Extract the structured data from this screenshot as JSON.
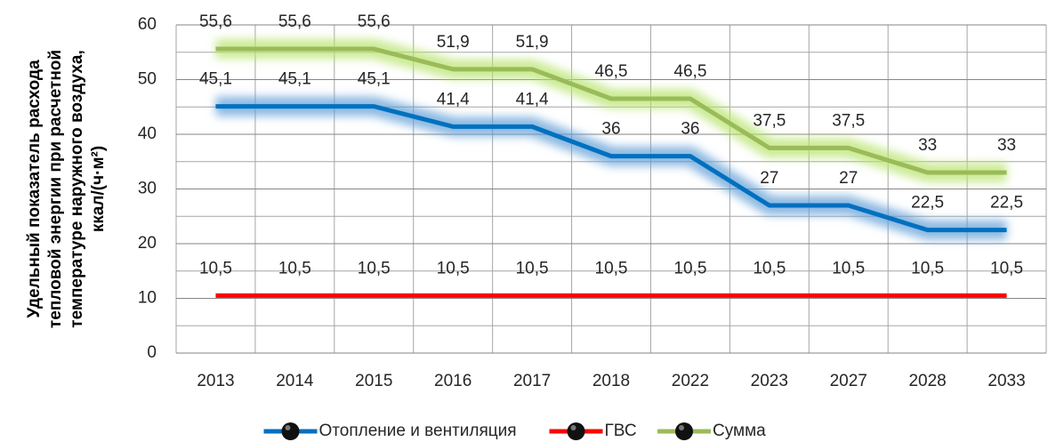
{
  "chart_data": {
    "type": "line",
    "ylabel": [
      "Удельный показатель расхода",
      "тепловой энергии при расчетной",
      "температуре наружного воздуха,",
      "ккал/(ч·м²)"
    ],
    "categories": [
      "2013",
      "2014",
      "2015",
      "2016",
      "2017",
      "2018",
      "2022",
      "2023",
      "2027",
      "2028",
      "2033"
    ],
    "series": [
      {
        "name": "Отопление и вентиляция",
        "color": "#0070c0",
        "glow": "#5b9bd5",
        "values": [
          45.1,
          45.1,
          45.1,
          41.4,
          41.4,
          36,
          36,
          27,
          27,
          22.5,
          22.5
        ],
        "value_labels": [
          "45,1",
          "45,1",
          "45,1",
          "41,4",
          "41,4",
          "36",
          "36",
          "27",
          "27",
          "22,5",
          "22,5"
        ]
      },
      {
        "name": "ГВС",
        "color": "#ff0000",
        "glow": "#ff6060",
        "values": [
          10.5,
          10.5,
          10.5,
          10.5,
          10.5,
          10.5,
          10.5,
          10.5,
          10.5,
          10.5,
          10.5
        ],
        "value_labels": [
          "10,5",
          "10,5",
          "10,5",
          "10,5",
          "10,5",
          "10,5",
          "10,5",
          "10,5",
          "10,5",
          "10,5",
          "10,5"
        ]
      },
      {
        "name": "Сумма",
        "color": "#9bbb59",
        "glow": "#b5e36a",
        "values": [
          55.6,
          55.6,
          55.6,
          51.9,
          51.9,
          46.5,
          46.5,
          37.5,
          37.5,
          33,
          33
        ],
        "value_labels": [
          "55,6",
          "55,6",
          "55,6",
          "51,9",
          "51,9",
          "46,5",
          "46,5",
          "37,5",
          "37,5",
          "33",
          "33"
        ]
      }
    ],
    "ylim": [
      0,
      60
    ],
    "yticks": [
      0,
      10,
      20,
      30,
      40,
      50,
      60
    ],
    "grid": true,
    "legend": "bottom"
  }
}
